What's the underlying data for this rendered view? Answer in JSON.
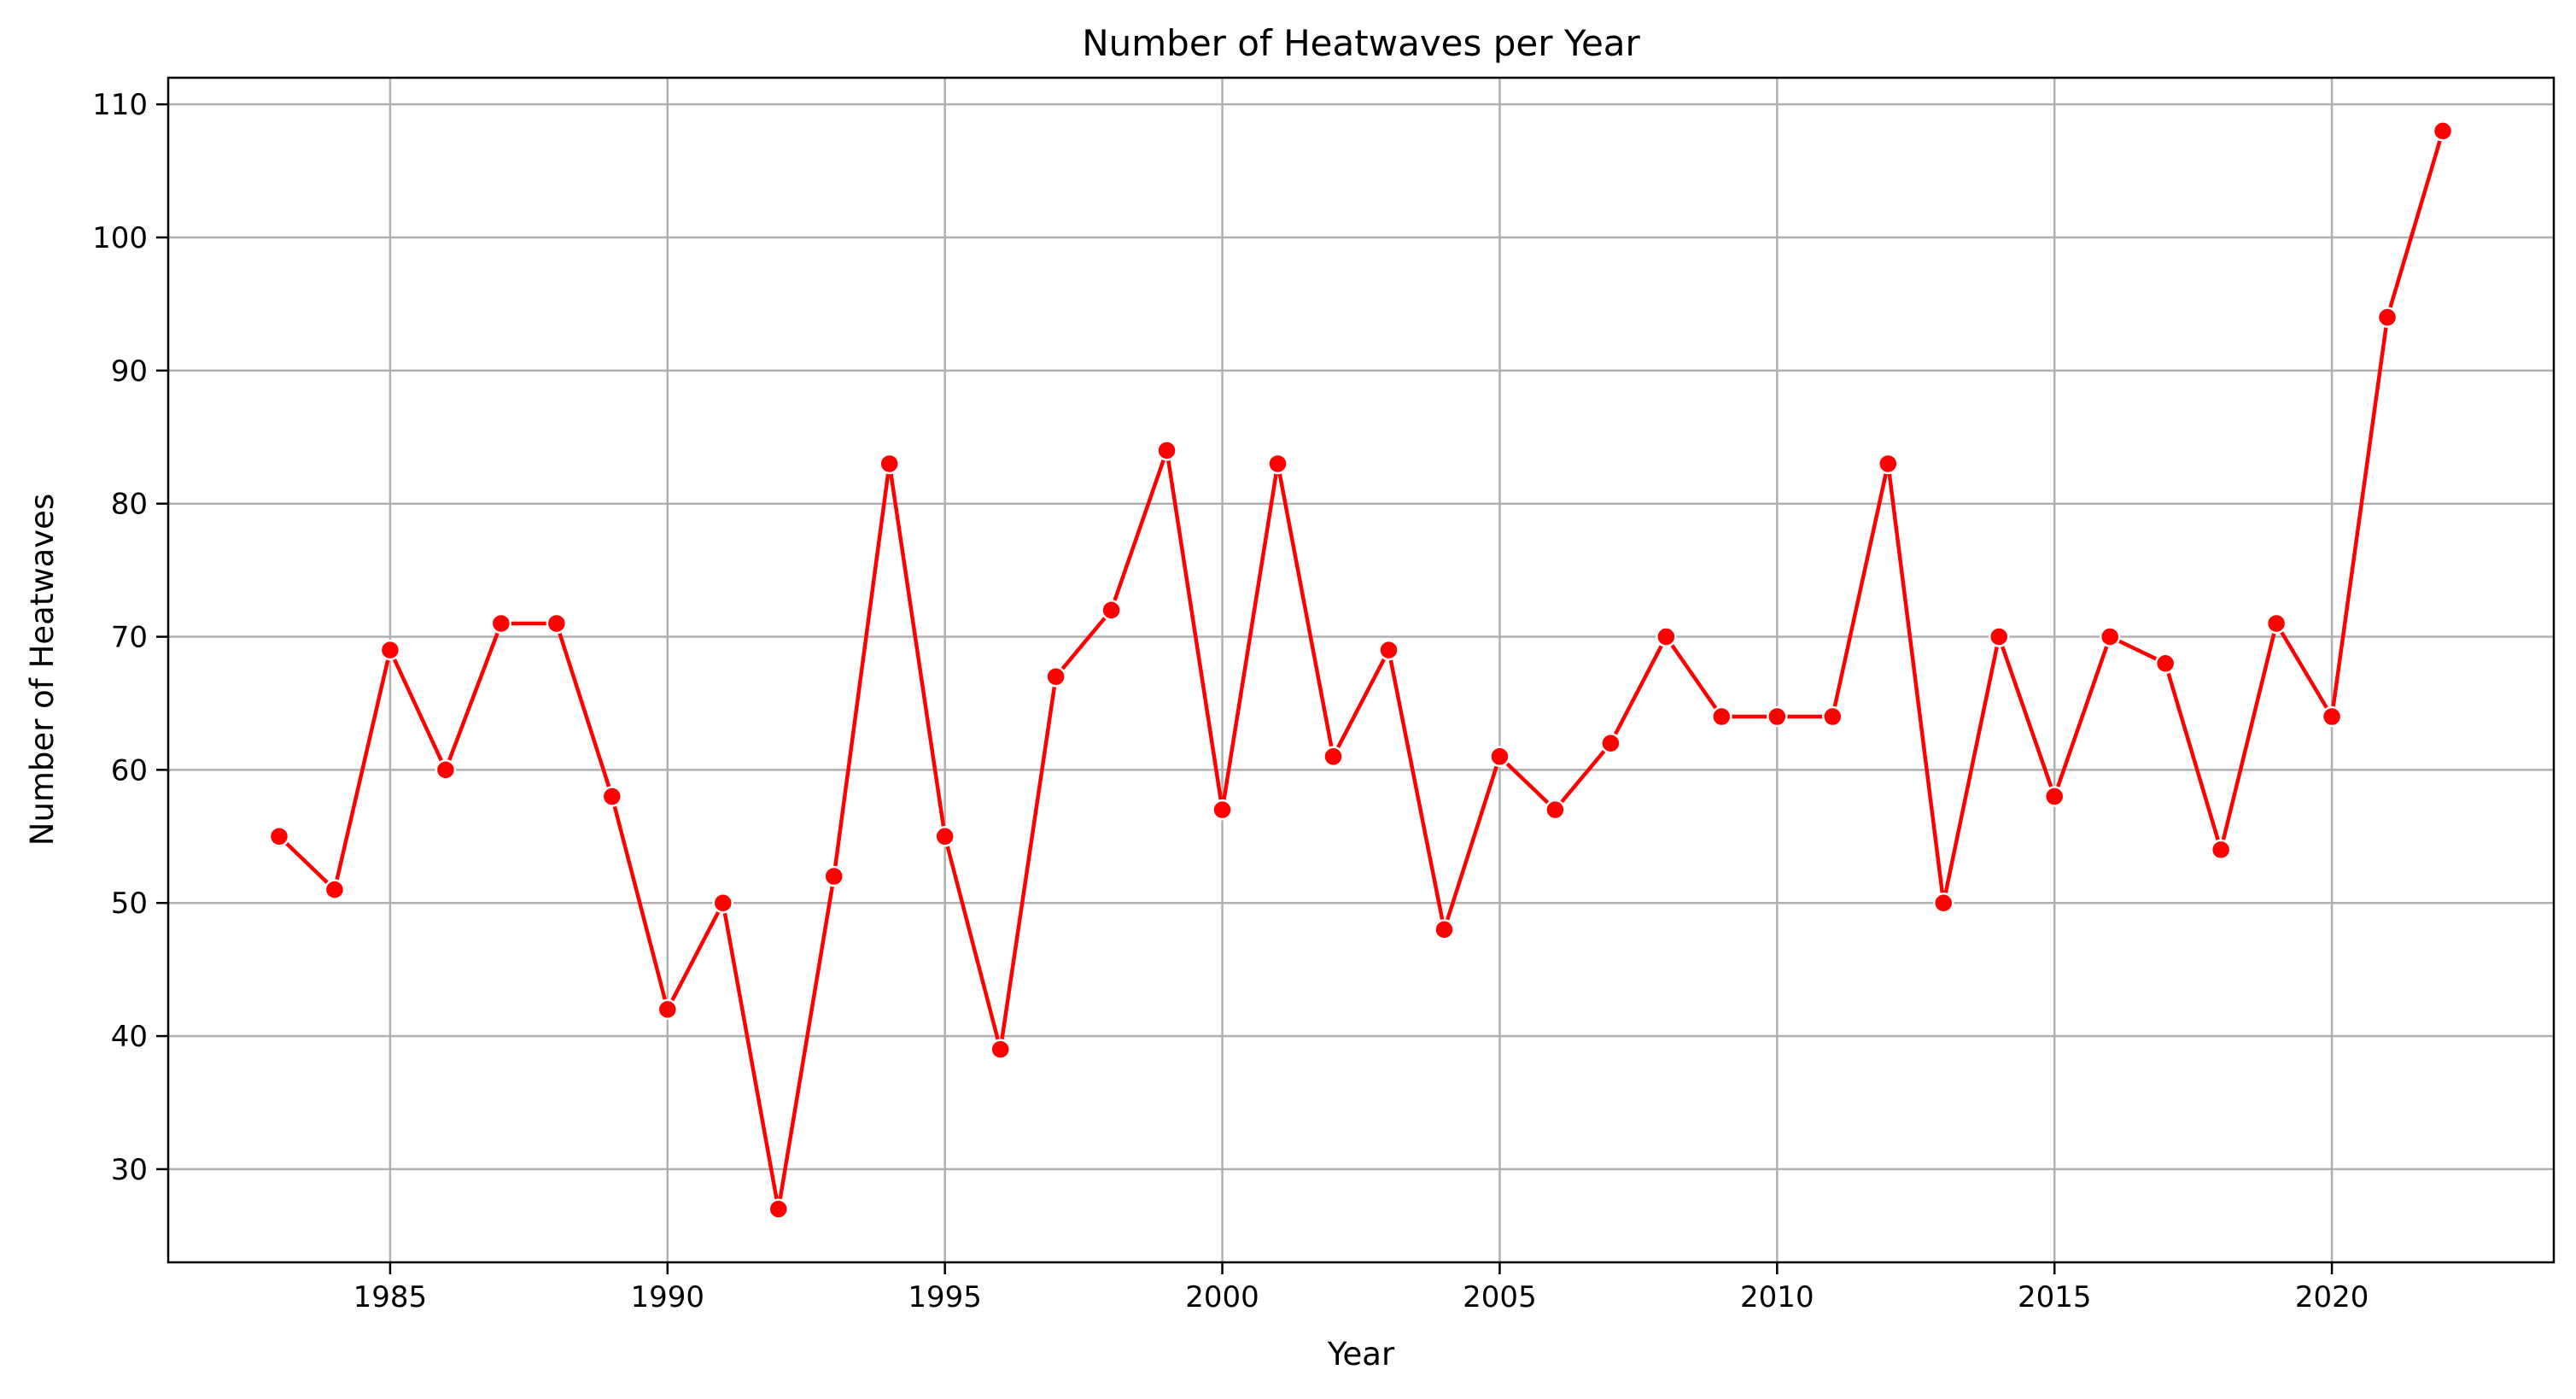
{
  "chart_data": {
    "type": "line",
    "title": "Number of Heatwaves per Year",
    "xlabel": "Year",
    "ylabel": "Number of Heatwaves",
    "xlim": [
      1981,
      2024
    ],
    "ylim": [
      23,
      112
    ],
    "xticks": [
      1985,
      1990,
      1995,
      2000,
      2005,
      2010,
      2015,
      2020
    ],
    "yticks": [
      30,
      40,
      50,
      60,
      70,
      80,
      90,
      100,
      110
    ],
    "grid": true,
    "marker": "circle",
    "color": "#ff0000",
    "x": [
      1983,
      1984,
      1985,
      1986,
      1987,
      1988,
      1989,
      1990,
      1991,
      1992,
      1993,
      1994,
      1995,
      1996,
      1997,
      1998,
      1999,
      2000,
      2001,
      2002,
      2003,
      2004,
      2005,
      2006,
      2007,
      2008,
      2009,
      2010,
      2011,
      2012,
      2013,
      2014,
      2015,
      2016,
      2017,
      2018,
      2019,
      2020,
      2021,
      2022
    ],
    "y": [
      55,
      51,
      69,
      60,
      71,
      71,
      58,
      42,
      50,
      27,
      52,
      83,
      55,
      39,
      67,
      72,
      84,
      57,
      83,
      61,
      69,
      48,
      61,
      57,
      62,
      70,
      64,
      64,
      64,
      83,
      50,
      70,
      58,
      70,
      68,
      54,
      71,
      64,
      94,
      108
    ]
  }
}
